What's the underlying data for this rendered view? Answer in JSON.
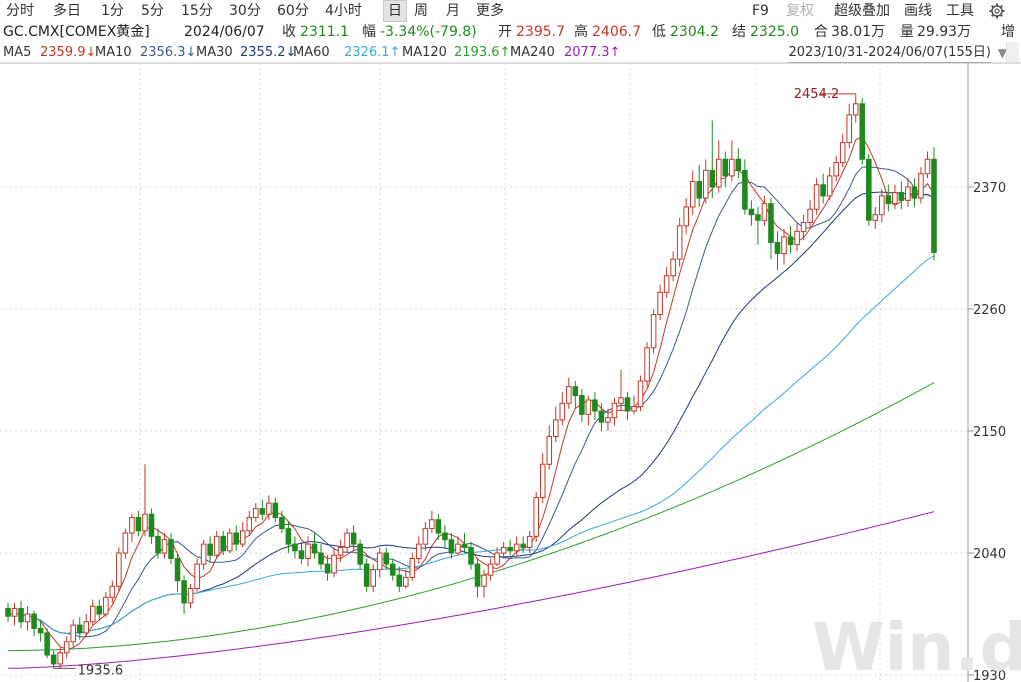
{
  "toolbar": {
    "periods": [
      "分时",
      "多日",
      "1分",
      "5分",
      "15分",
      "30分",
      "60分",
      "4小时",
      "日",
      "周",
      "月",
      "更多"
    ],
    "active_period": "日",
    "right_items": [
      "F9",
      "复权",
      "超级叠加",
      "画线",
      "工具"
    ],
    "gear_icon": "gear-icon",
    "extra": "增"
  },
  "info": {
    "symbol": "GC.CMX[COMEX黄金]",
    "date": "2024/06/07",
    "close_label": "收",
    "close": "2311.1",
    "change_label": "幅",
    "change": "-3.34%(-79.8)",
    "open_label": "开",
    "open": "2395.7",
    "high_label": "高",
    "high": "2406.7",
    "low_label": "低",
    "low": "2304.2",
    "settle_label": "结",
    "settle": "2325.0",
    "oi_label": "合",
    "oi": "38.01万",
    "vol_label": "量",
    "vol": "29.93万"
  },
  "ma": [
    {
      "label": "MA5",
      "value": "2359.9",
      "arrow": "↓",
      "color": "#c0392b"
    },
    {
      "label": "MA10",
      "value": "2356.3",
      "arrow": "↓",
      "color": "#3b5b8c"
    },
    {
      "label": "MA30",
      "value": "2355.2",
      "arrow": "↓",
      "color": "#1f3a7a"
    },
    {
      "label": "MA60",
      "value": "2326.1",
      "arrow": "↑",
      "color": "#3aa7d8"
    },
    {
      "label": "MA120",
      "value": "2193.6",
      "arrow": "↑",
      "color": "#2e9e2e"
    },
    {
      "label": "MA240",
      "value": "2077.3",
      "arrow": "↑",
      "color": "#9b1fb5"
    }
  ],
  "date_range": "2023/10/31-2024/06/07(155日)",
  "watermark": "Win.d",
  "colors": {
    "up": "#c0392b",
    "down": "#1e8a1e",
    "grid": "#d8d8d8"
  },
  "chart_data": {
    "type": "candlestick",
    "y_ticks": [
      "2370",
      "2260",
      "2150",
      "2040",
      "1930"
    ],
    "ylim": [
      1930,
      2480
    ],
    "annotations": [
      {
        "text": "2454.2",
        "type": "max"
      },
      {
        "text": "1935.6",
        "type": "min"
      }
    ],
    "series_names": [
      "MA5",
      "MA10",
      "MA30",
      "MA60",
      "MA120",
      "MA240"
    ],
    "candles": [
      [
        1990,
        1983,
        1995,
        1978
      ],
      [
        1983,
        1990,
        1995,
        1975
      ],
      [
        1990,
        1978,
        1997,
        1972
      ],
      [
        1978,
        1985,
        1992,
        1970
      ],
      [
        1985,
        1972,
        1988,
        1965
      ],
      [
        1972,
        1968,
        1980,
        1960
      ],
      [
        1968,
        1948,
        1972,
        1945
      ],
      [
        1948,
        1940,
        1952,
        1936
      ],
      [
        1940,
        1950,
        1955,
        1936
      ],
      [
        1950,
        1960,
        1965,
        1945
      ],
      [
        1960,
        1975,
        1980,
        1955
      ],
      [
        1975,
        1968,
        1982,
        1962
      ],
      [
        1968,
        1978,
        1985,
        1965
      ],
      [
        1978,
        1992,
        1998,
        1975
      ],
      [
        1992,
        1985,
        1998,
        1980
      ],
      [
        1985,
        2000,
        2005,
        1982
      ],
      [
        2000,
        2010,
        2015,
        1995
      ],
      [
        2010,
        2040,
        2045,
        2005
      ],
      [
        2040,
        2058,
        2062,
        2035
      ],
      [
        2058,
        2072,
        2075,
        2050
      ],
      [
        2072,
        2060,
        2078,
        2055
      ],
      [
        2060,
        2075,
        2120,
        2055
      ],
      [
        2075,
        2055,
        2080,
        2048
      ],
      [
        2055,
        2040,
        2062,
        2035
      ],
      [
        2040,
        2052,
        2058,
        2035
      ],
      [
        2052,
        2035,
        2058,
        2030
      ],
      [
        2035,
        2015,
        2040,
        2005
      ],
      [
        2015,
        1995,
        2020,
        1985
      ],
      [
        1995,
        2008,
        2012,
        1990
      ],
      [
        2008,
        2030,
        2035,
        2005
      ],
      [
        2030,
        2048,
        2052,
        2025
      ],
      [
        2048,
        2038,
        2055,
        2032
      ],
      [
        2038,
        2055,
        2060,
        2035
      ],
      [
        2055,
        2042,
        2060,
        2038
      ],
      [
        2042,
        2058,
        2062,
        2040
      ],
      [
        2058,
        2048,
        2065,
        2042
      ],
      [
        2048,
        2060,
        2068,
        2045
      ],
      [
        2060,
        2072,
        2078,
        2055
      ],
      [
        2072,
        2080,
        2085,
        2068
      ],
      [
        2080,
        2075,
        2088,
        2070
      ],
      [
        2075,
        2085,
        2092,
        2070
      ],
      [
        2085,
        2072,
        2090,
        2068
      ],
      [
        2072,
        2062,
        2078,
        2058
      ],
      [
        2062,
        2048,
        2068,
        2040
      ],
      [
        2048,
        2042,
        2055,
        2035
      ],
      [
        2042,
        2035,
        2050,
        2030
      ],
      [
        2035,
        2048,
        2055,
        2028
      ],
      [
        2048,
        2040,
        2058,
        2035
      ],
      [
        2040,
        2030,
        2048,
        2025
      ],
      [
        2030,
        2022,
        2038,
        2015
      ],
      [
        2022,
        2038,
        2045,
        2018
      ],
      [
        2038,
        2045,
        2052,
        2032
      ],
      [
        2045,
        2058,
        2062,
        2040
      ],
      [
        2058,
        2048,
        2065,
        2042
      ],
      [
        2048,
        2030,
        2052,
        2025
      ],
      [
        2030,
        2010,
        2035,
        2005
      ],
      [
        2010,
        2025,
        2030,
        2005
      ],
      [
        2025,
        2040,
        2045,
        2018
      ],
      [
        2040,
        2030,
        2045,
        2025
      ],
      [
        2030,
        2020,
        2035,
        2015
      ],
      [
        2020,
        2010,
        2028,
        2005
      ],
      [
        2010,
        2018,
        2025,
        2008
      ],
      [
        2018,
        2035,
        2040,
        2015
      ],
      [
        2035,
        2048,
        2055,
        2030
      ],
      [
        2048,
        2062,
        2068,
        2042
      ],
      [
        2062,
        2070,
        2078,
        2058
      ],
      [
        2070,
        2058,
        2075,
        2052
      ],
      [
        2058,
        2052,
        2065,
        2045
      ],
      [
        2052,
        2040,
        2058,
        2035
      ],
      [
        2040,
        2048,
        2055,
        2038
      ],
      [
        2048,
        2045,
        2058,
        2040
      ],
      [
        2045,
        2030,
        2050,
        2025
      ],
      [
        2030,
        2010,
        2035,
        2000
      ],
      [
        2010,
        2020,
        2025,
        2000
      ],
      [
        2020,
        2030,
        2035,
        2015
      ],
      [
        2030,
        2040,
        2045,
        2028
      ],
      [
        2040,
        2045,
        2050,
        2035
      ],
      [
        2045,
        2042,
        2052,
        2038
      ],
      [
        2042,
        2048,
        2055,
        2038
      ],
      [
        2048,
        2045,
        2055,
        2040
      ],
      [
        2045,
        2055,
        2060,
        2040
      ],
      [
        2055,
        2090,
        2095,
        2050
      ],
      [
        2090,
        2120,
        2130,
        2085
      ],
      [
        2120,
        2145,
        2155,
        2115
      ],
      [
        2145,
        2160,
        2172,
        2140
      ],
      [
        2160,
        2175,
        2185,
        2155
      ],
      [
        2175,
        2190,
        2198,
        2170
      ],
      [
        2190,
        2182,
        2195,
        2170
      ],
      [
        2182,
        2165,
        2188,
        2158
      ],
      [
        2165,
        2178,
        2182,
        2155
      ],
      [
        2178,
        2168,
        2185,
        2160
      ],
      [
        2168,
        2158,
        2175,
        2150
      ],
      [
        2158,
        2162,
        2170,
        2150
      ],
      [
        2162,
        2175,
        2180,
        2155
      ],
      [
        2175,
        2180,
        2205,
        2168
      ],
      [
        2180,
        2168,
        2185,
        2160
      ],
      [
        2168,
        2172,
        2182,
        2165
      ],
      [
        2172,
        2195,
        2200,
        2168
      ],
      [
        2195,
        2225,
        2230,
        2190
      ],
      [
        2225,
        2255,
        2260,
        2220
      ],
      [
        2255,
        2275,
        2282,
        2250
      ],
      [
        2275,
        2290,
        2298,
        2270
      ],
      [
        2290,
        2305,
        2312,
        2285
      ],
      [
        2305,
        2335,
        2342,
        2298
      ],
      [
        2335,
        2352,
        2360,
        2328
      ],
      [
        2352,
        2375,
        2385,
        2345
      ],
      [
        2375,
        2360,
        2390,
        2352
      ],
      [
        2360,
        2385,
        2395,
        2355
      ],
      [
        2385,
        2370,
        2430,
        2360
      ],
      [
        2370,
        2395,
        2412,
        2365
      ],
      [
        2395,
        2380,
        2402,
        2370
      ],
      [
        2380,
        2395,
        2412,
        2375
      ],
      [
        2395,
        2385,
        2405,
        2378
      ],
      [
        2385,
        2350,
        2395,
        2345
      ],
      [
        2350,
        2345,
        2358,
        2335
      ],
      [
        2345,
        2340,
        2352,
        2318
      ],
      [
        2340,
        2355,
        2362,
        2335
      ],
      [
        2355,
        2320,
        2360,
        2305
      ],
      [
        2320,
        2310,
        2330,
        2295
      ],
      [
        2310,
        2325,
        2332,
        2300
      ],
      [
        2325,
        2318,
        2335,
        2310
      ],
      [
        2318,
        2330,
        2338,
        2312
      ],
      [
        2330,
        2338,
        2345,
        2322
      ],
      [
        2338,
        2350,
        2358,
        2332
      ],
      [
        2350,
        2372,
        2378,
        2345
      ],
      [
        2372,
        2362,
        2382,
        2355
      ],
      [
        2362,
        2380,
        2388,
        2358
      ],
      [
        2380,
        2392,
        2398,
        2375
      ],
      [
        2392,
        2410,
        2418,
        2388
      ],
      [
        2410,
        2435,
        2445,
        2405
      ],
      [
        2435,
        2445,
        2454,
        2428
      ],
      [
        2445,
        2395,
        2450,
        2390
      ],
      [
        2395,
        2340,
        2400,
        2335
      ],
      [
        2340,
        2345,
        2352,
        2332
      ],
      [
        2345,
        2362,
        2368,
        2338
      ],
      [
        2362,
        2355,
        2372,
        2348
      ],
      [
        2355,
        2365,
        2372,
        2350
      ],
      [
        2365,
        2358,
        2375,
        2350
      ],
      [
        2358,
        2370,
        2378,
        2352
      ],
      [
        2370,
        2360,
        2378,
        2352
      ],
      [
        2360,
        2382,
        2388,
        2355
      ],
      [
        2382,
        2395,
        2402,
        2378
      ],
      [
        2395,
        2311,
        2406,
        2304
      ]
    ],
    "ma_series": {
      "MA5": [
        1985,
        1980,
        1976,
        1968,
        1960,
        1955,
        1950,
        1958,
        1965,
        1975,
        1990,
        2005,
        2025,
        2040,
        2050,
        2055,
        2050,
        2045,
        2035,
        2025,
        2022,
        2028,
        2035,
        2042,
        2048,
        2055,
        2060,
        2058,
        2052,
        2045,
        2040,
        2035,
        2032,
        2035,
        2040,
        2038,
        2032,
        2025,
        2022,
        2028,
        2035,
        2045,
        2055,
        2058,
        2050,
        2038,
        2030,
        2025,
        2030,
        2040,
        2048,
        2050,
        2042,
        2035,
        2030,
        2028,
        2030,
        2035,
        2040,
        2045,
        2042,
        2040,
        2045,
        2065,
        2100,
        2130,
        2155,
        2170,
        2178,
        2175,
        2172,
        2170,
        2168,
        2172,
        2180,
        2200,
        2235,
        2265,
        2290,
        2315,
        2340,
        2362,
        2375,
        2380,
        2385,
        2378,
        2362,
        2345,
        2330,
        2322,
        2320,
        2325,
        2335,
        2348,
        2365,
        2385,
        2405,
        2420,
        2405,
        2385,
        2368,
        2358,
        2355,
        2360,
        2362,
        2368,
        2372,
        2365
      ],
      "MA30": [
        1950,
        1950,
        1951,
        1952,
        1953,
        1955,
        1958,
        1962,
        1966,
        1970,
        1975,
        1980,
        1985,
        1990,
        1995,
        2000,
        2005,
        2010,
        2013,
        2016,
        2018,
        2020,
        2022,
        2024,
        2026,
        2028,
        2030,
        2032,
        2034,
        2036,
        2038,
        2040,
        2042,
        2044,
        2046,
        2048,
        2050,
        2055,
        2062,
        2072,
        2085,
        2100,
        2115,
        2130,
        2145,
        2160,
        2175,
        2192,
        2210,
        2228,
        2245,
        2260,
        2275,
        2290,
        2305,
        2318,
        2330,
        2340,
        2348,
        2352,
        2350,
        2348,
        2345,
        2343,
        2345,
        2348,
        2350,
        2352,
        2354,
        2355,
        2355
      ]
    }
  }
}
